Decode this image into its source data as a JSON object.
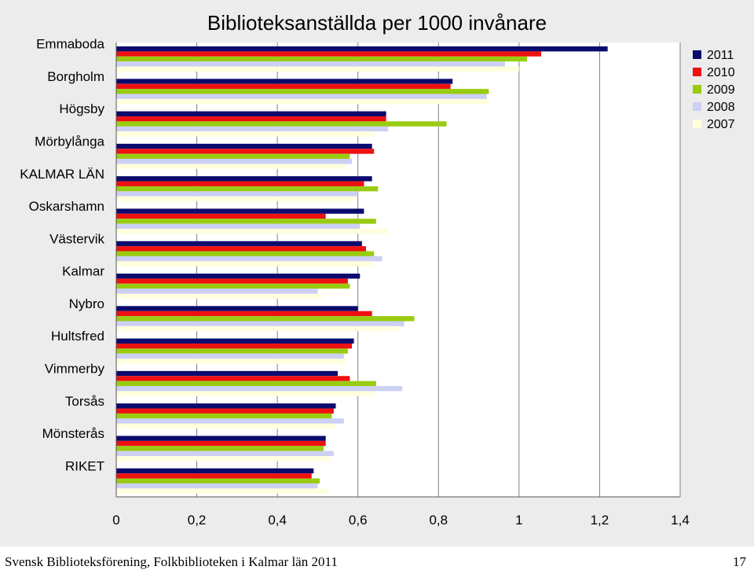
{
  "chart_data": {
    "type": "bar",
    "orientation": "horizontal",
    "title": "Biblioteksanställda per 1000 invånare",
    "categories": [
      "Emmaboda",
      "Borgholm",
      "Högsby",
      "Mörbylånga",
      "KALMAR LÄN",
      "Oskarshamn",
      "Västervik",
      "Kalmar",
      "Nybro",
      "Hultsfred",
      "Vimmerby",
      "Torsås",
      "Mönsterås",
      "RIKET"
    ],
    "series": [
      {
        "name": "2011",
        "color": "#0b0b6e",
        "values": [
          1.22,
          0.835,
          0.67,
          0.635,
          0.635,
          0.615,
          0.61,
          0.605,
          0.6,
          0.59,
          0.55,
          0.545,
          0.52,
          0.49
        ]
      },
      {
        "name": "2010",
        "color": "#ee1111",
        "values": [
          1.055,
          0.83,
          0.67,
          0.64,
          0.615,
          0.52,
          0.62,
          0.575,
          0.635,
          0.585,
          0.58,
          0.54,
          0.52,
          0.485
        ]
      },
      {
        "name": "2009",
        "color": "#99cc11",
        "values": [
          1.02,
          0.925,
          0.82,
          0.58,
          0.65,
          0.645,
          0.64,
          0.58,
          0.74,
          0.575,
          0.645,
          0.535,
          0.515,
          0.505
        ]
      },
      {
        "name": "2008",
        "color": "#ccd0f4",
        "values": [
          0.965,
          0.92,
          0.675,
          0.585,
          0.6,
          0.605,
          0.66,
          0.5,
          0.715,
          0.565,
          0.71,
          0.565,
          0.54,
          0.5
        ]
      },
      {
        "name": "2007",
        "color": "#ffffdd",
        "values": [
          1.0,
          0.925,
          0.64,
          0.57,
          0.595,
          0.675,
          0.635,
          0.51,
          0.7,
          0.57,
          0.64,
          0.545,
          0.53,
          0.525
        ]
      }
    ],
    "xlim": [
      0,
      1.4
    ],
    "xticks": [
      "0",
      "0,2",
      "0,4",
      "0,6",
      "0,8",
      "1",
      "1,2",
      "1,4"
    ],
    "grid": "vertical",
    "legend_position": "top-right"
  },
  "footer": {
    "left": "Svensk Biblioteksförening, Folkbiblioteken i Kalmar län 2011",
    "page_number": "17"
  },
  "colors": {
    "panel_background": "#ececec",
    "plot_background": "#ffffff",
    "gridline": "#808080"
  }
}
